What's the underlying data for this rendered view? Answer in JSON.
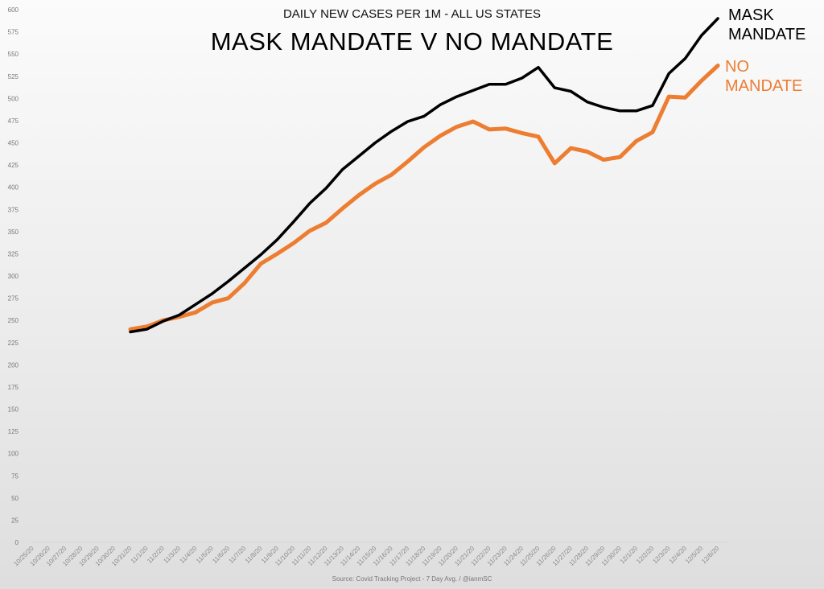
{
  "chart_data": {
    "type": "line",
    "subtitle": "DAILY NEW CASES PER 1M - ALL US STATES",
    "title": "MASK MANDATE V NO MANDATE",
    "xlabel": "",
    "ylabel": "",
    "source": "Source: Covid Tracking Project - 7 Day Avg. / @ianmSC",
    "ylim": [
      0,
      600
    ],
    "ytick_step": 25,
    "yticks": [
      0,
      25,
      50,
      75,
      100,
      125,
      150,
      175,
      200,
      225,
      250,
      275,
      300,
      325,
      350,
      375,
      400,
      425,
      450,
      475,
      500,
      525,
      550,
      575,
      600
    ],
    "grid": false,
    "legend_position": "inline-right",
    "categories": [
      "10/25/20",
      "10/26/20",
      "10/27/20",
      "10/28/20",
      "10/29/20",
      "10/30/20",
      "10/31/20",
      "11/1/20",
      "11/2/20",
      "11/3/20",
      "11/4/20",
      "11/5/20",
      "11/6/20",
      "11/7/20",
      "11/8/20",
      "11/9/20",
      "11/10/20",
      "11/11/20",
      "11/12/20",
      "11/13/20",
      "11/14/20",
      "11/15/20",
      "11/16/20",
      "11/17/20",
      "11/18/20",
      "11/19/20",
      "11/20/20",
      "11/21/20",
      "11/22/20",
      "11/23/20",
      "11/24/20",
      "11/25/20",
      "11/26/20",
      "11/27/20",
      "11/28/20",
      "11/29/20",
      "11/30/20",
      "12/1/20",
      "12/2/20",
      "12/3/20",
      "12/4/20",
      "12/5/20",
      "12/6/20"
    ],
    "series": [
      {
        "name": "MASK MANDATE",
        "color": "#000000",
        "start_index": 6,
        "values": [
          237,
          240,
          249,
          256,
          268,
          280,
          294,
          309,
          324,
          341,
          361,
          382,
          399,
          420,
          435,
          450,
          463,
          474,
          480,
          493,
          502,
          509,
          516,
          516,
          523,
          535,
          512,
          508,
          496,
          490,
          486,
          486,
          492,
          528,
          545,
          571,
          590
        ]
      },
      {
        "name": "NO MANDATE",
        "color": "#ED7D31",
        "start_index": 6,
        "values": [
          240,
          243,
          250,
          254,
          259,
          270,
          275,
          292,
          314,
          325,
          337,
          351,
          360,
          376,
          391,
          404,
          414,
          429,
          445,
          458,
          468,
          474,
          465,
          466,
          461,
          457,
          427,
          444,
          440,
          431,
          434,
          452,
          462,
          502,
          501,
          520,
          537
        ]
      }
    ]
  },
  "labels": {
    "legend_mask": [
      "MASK",
      "MANDATE"
    ],
    "legend_nomask": [
      "NO",
      "MANDATE"
    ]
  }
}
